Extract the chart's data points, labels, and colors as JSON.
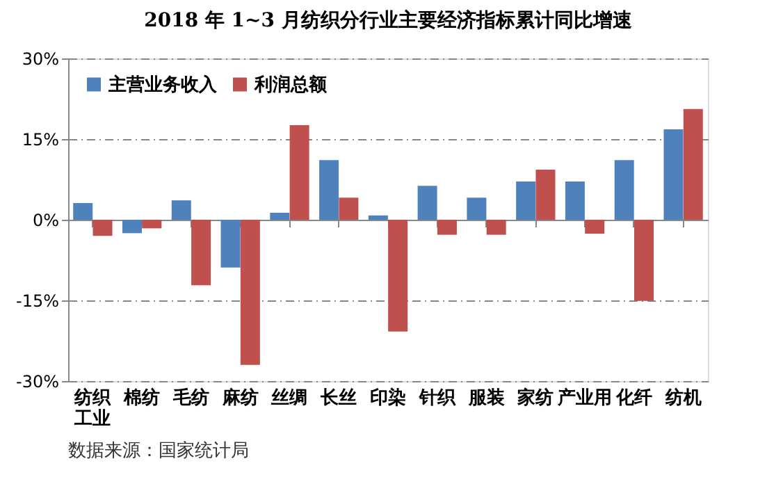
{
  "chart_data": {
    "type": "bar",
    "title": "2018 年 1~3 月纺织分行业主要经济指标累计同比增速",
    "categories": [
      "纺织工业",
      "棉纺",
      "毛纺",
      "麻纺",
      "丝绸",
      "长丝",
      "印染",
      "针织",
      "服装",
      "家纺",
      "产业用",
      "化纤",
      "纺机"
    ],
    "series": [
      {
        "name": "主营业务收入",
        "color": "#4f81bd",
        "values": [
          3.1,
          -2.5,
          3.6,
          -8.9,
          1.3,
          11.1,
          0.8,
          6.3,
          4.1,
          7.1,
          7.1,
          11.1,
          16.8
        ]
      },
      {
        "name": "利润总额",
        "color": "#c0504d",
        "values": [
          -3.0,
          -1.6,
          -12.2,
          -27.0,
          17.6,
          4.1,
          -20.8,
          -2.8,
          -2.8,
          9.3,
          -2.6,
          -15.1,
          20.6
        ]
      }
    ],
    "ylim": [
      -30,
      30
    ],
    "yticks": [
      {
        "value": -30,
        "label": "-30%"
      },
      {
        "value": -15,
        "label": "-15%"
      },
      {
        "value": 0,
        "label": "0%"
      },
      {
        "value": 15,
        "label": "15%"
      },
      {
        "value": 30,
        "label": "30%"
      }
    ],
    "grid": "y",
    "legend": "top left",
    "annotations": [
      "数据来源：国家统计局"
    ]
  }
}
